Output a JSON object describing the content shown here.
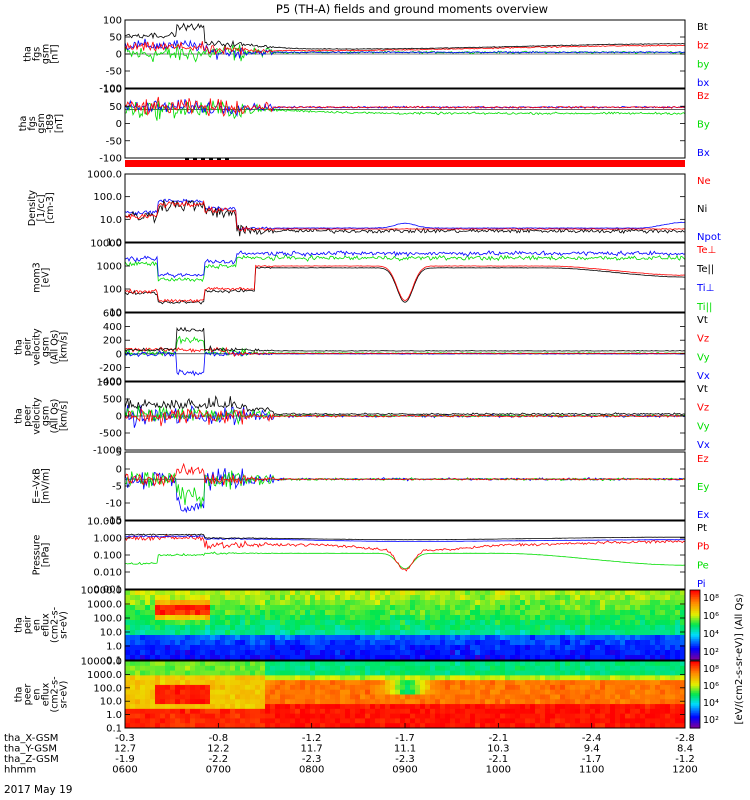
{
  "title": "P5 (TH-A) fields and ground moments overview",
  "date_label": "2017 May 19",
  "colors": {
    "black": "#000000",
    "red": "#ff0000",
    "green": "#00dd00",
    "blue": "#0000ff"
  },
  "chart_data": {
    "type": "line",
    "x_ticks": [
      "0600",
      "0700",
      "0800",
      "0900",
      "1000",
      "1100",
      "1200"
    ],
    "x_rows": [
      {
        "label": "tha_X-GSM",
        "values": [
          "-0.3",
          "-0.8",
          "-1.2",
          "-1.7",
          "-2.1",
          "-2.4",
          "-2.8"
        ]
      },
      {
        "label": "tha_Y-GSM",
        "values": [
          "12.7",
          "12.2",
          "11.7",
          "11.1",
          "10.3",
          "9.4",
          "8.4"
        ]
      },
      {
        "label": "tha_Z-GSM",
        "values": [
          "-1.9",
          "-2.2",
          "-2.3",
          "-2.3",
          "-2.1",
          "-1.7",
          "-1.2"
        ]
      },
      {
        "label": "hhmm",
        "values": [
          "0600",
          "0700",
          "0800",
          "0900",
          "1000",
          "1100",
          "1200"
        ]
      }
    ],
    "panels": [
      {
        "id": "fgs",
        "ylabel": [
          "tha",
          "fgs",
          "gsm",
          "[nT]"
        ],
        "scale": "linear",
        "ylim": [
          -100,
          100
        ],
        "ticks": [
          "100",
          "50",
          "0",
          "-50",
          "-100"
        ],
        "legend": [
          {
            "label": "Bt",
            "color": "black"
          },
          {
            "label": "bz",
            "color": "red"
          },
          {
            "label": "by",
            "color": "green"
          },
          {
            "label": "bx",
            "color": "blue"
          }
        ]
      },
      {
        "id": "fgs_t89",
        "ylabel": [
          "tha",
          "fgs",
          "gsm",
          "-t89",
          "[nT]"
        ],
        "scale": "linear",
        "ylim": [
          -120,
          50
        ],
        "ticks": [
          "100",
          "50",
          "0",
          "-50",
          "-100"
        ],
        "legend": [
          {
            "label": "Bz",
            "color": "red"
          },
          {
            "label": "By",
            "color": "green"
          },
          {
            "label": "Bx",
            "color": "blue"
          }
        ]
      },
      {
        "id": "density",
        "ylabel": [
          "Density",
          "[1/cc]",
          "[cm-3]"
        ],
        "scale": "log",
        "ylim": [
          0.3,
          1000
        ],
        "ticks": [
          "1000.0",
          "100.0",
          "10.0",
          "1.0"
        ],
        "legend": [
          {
            "label": "Ne",
            "color": "red"
          },
          {
            "label": "Ni",
            "color": "black"
          },
          {
            "label": "Npot",
            "color": "blue"
          }
        ]
      },
      {
        "id": "temperature",
        "ylabel": [
          "mom3",
          "[eV]"
        ],
        "scale": "log",
        "ylim": [
          10,
          10000
        ],
        "ticks": [
          "10000",
          "1000",
          "100",
          "10"
        ],
        "legend": [
          {
            "label": "Te⊥",
            "color": "red"
          },
          {
            "label": "Te||",
            "color": "black"
          },
          {
            "label": "Ti⊥",
            "color": "blue"
          },
          {
            "label": "Ti||",
            "color": "green"
          }
        ]
      },
      {
        "id": "pei_v",
        "ylabel": [
          "tha",
          "peir",
          "velocity",
          "gsm",
          "(All Qs)",
          "[km/s]"
        ],
        "scale": "linear",
        "ylim": [
          -400,
          600
        ],
        "ticks": [
          "600",
          "400",
          "200",
          "0",
          "-200",
          "-400"
        ],
        "legend": [
          {
            "label": "Vt",
            "color": "black"
          },
          {
            "label": "Vz",
            "color": "red"
          },
          {
            "label": "Vy",
            "color": "green"
          },
          {
            "label": "Vx",
            "color": "blue"
          }
        ]
      },
      {
        "id": "pee_v",
        "ylabel": [
          "tha",
          "peer",
          "velocity",
          "gsm",
          "(All Qs)",
          "[km/s]"
        ],
        "scale": "linear",
        "ylim": [
          -1000,
          1000
        ],
        "ticks": [
          "1000",
          "500",
          "0",
          "-500",
          "-1000"
        ],
        "legend": [
          {
            "label": "Vt",
            "color": "black"
          },
          {
            "label": "Vz",
            "color": "red"
          },
          {
            "label": "Vy",
            "color": "green"
          },
          {
            "label": "Vx",
            "color": "blue"
          }
        ]
      },
      {
        "id": "efield",
        "ylabel": [
          "E=-VxB",
          "[mV/m]"
        ],
        "scale": "linear",
        "ylim": [
          -15,
          10
        ],
        "ticks": [
          "5",
          "0",
          "-5",
          "-10",
          "-15"
        ],
        "legend": [
          {
            "label": "Ez",
            "color": "red"
          },
          {
            "label": "Ey",
            "color": "green"
          },
          {
            "label": "Ex",
            "color": "blue"
          }
        ]
      },
      {
        "id": "pressure",
        "ylabel": [
          "Pressure",
          "[nPa]"
        ],
        "scale": "log",
        "ylim": [
          0.001,
          10
        ],
        "ticks": [
          "10.000",
          "1.000",
          "0.100",
          "0.010",
          "0.001"
        ],
        "legend": [
          {
            "label": "Pt",
            "color": "black"
          },
          {
            "label": "Pb",
            "color": "red"
          },
          {
            "label": "Pe",
            "color": "green"
          },
          {
            "label": "Pi",
            "color": "blue"
          }
        ]
      },
      {
        "id": "pei_spec",
        "ylabel": [
          "tha",
          "peir",
          "en",
          "eflux",
          "(cm2-s-",
          "sr-eV)"
        ],
        "scale": "log",
        "ylim": [
          0.1,
          10000
        ],
        "ticks": [
          "10000.0",
          "1000.0",
          "100.0",
          "10.0",
          "1.0",
          "0.1"
        ],
        "legend": []
      },
      {
        "id": "pee_spec",
        "ylabel": [
          "tha",
          "peer",
          "en",
          "eflux",
          "(cm2-s-",
          "sr-eV)"
        ],
        "scale": "log",
        "ylim": [
          0.1,
          10000
        ],
        "ticks": [
          "10000.0",
          "1000.0",
          "100.0",
          "10.0",
          "1.0",
          "0.1"
        ],
        "legend": []
      }
    ],
    "colorbar": {
      "label": "[eV/(cm2-s-sr-eV)] (All Qs)",
      "top_ticks": [
        "10⁸",
        "10⁶",
        "10⁴",
        "10²"
      ],
      "bottom_ticks": [
        "10⁸",
        "10⁶",
        "10⁴",
        "10²"
      ]
    }
  }
}
